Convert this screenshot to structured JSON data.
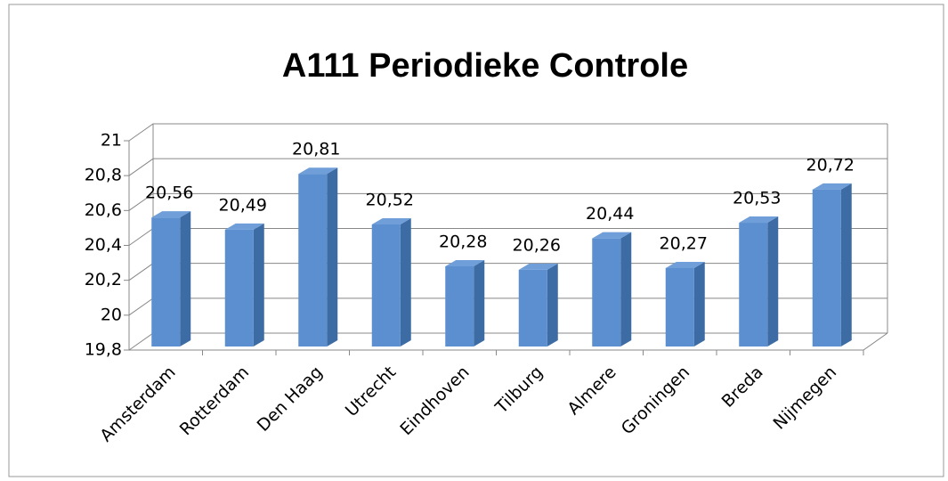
{
  "chart_data": {
    "type": "bar3d",
    "title": "A111 Periodieke Controle",
    "categories": [
      "Amsterdam",
      "Rotterdam",
      "Den Haag",
      "Utrecht",
      "Eindhoven",
      "Tilburg",
      "Almere",
      "Groningen",
      "Breda",
      "Nijmegen"
    ],
    "values": [
      20.56,
      20.49,
      20.81,
      20.52,
      20.28,
      20.26,
      20.44,
      20.27,
      20.53,
      20.72
    ],
    "value_labels": [
      "20,56",
      "20,49",
      "20,81",
      "20,52",
      "20,28",
      "20,26",
      "20,44",
      "20,27",
      "20,53",
      "20,72"
    ],
    "color": "#5b8fcf",
    "ylim": [
      19.8,
      21
    ],
    "yticks": [
      {
        "value": 19.8,
        "label": "19,8"
      },
      20,
      {
        "value": 20.2,
        "label": "20,2"
      },
      {
        "value": 20.4,
        "label": "20,4"
      },
      {
        "value": 20.6,
        "label": "20,6"
      },
      {
        "value": 20.8,
        "label": "20,8"
      },
      21
    ],
    "grid": true
  }
}
